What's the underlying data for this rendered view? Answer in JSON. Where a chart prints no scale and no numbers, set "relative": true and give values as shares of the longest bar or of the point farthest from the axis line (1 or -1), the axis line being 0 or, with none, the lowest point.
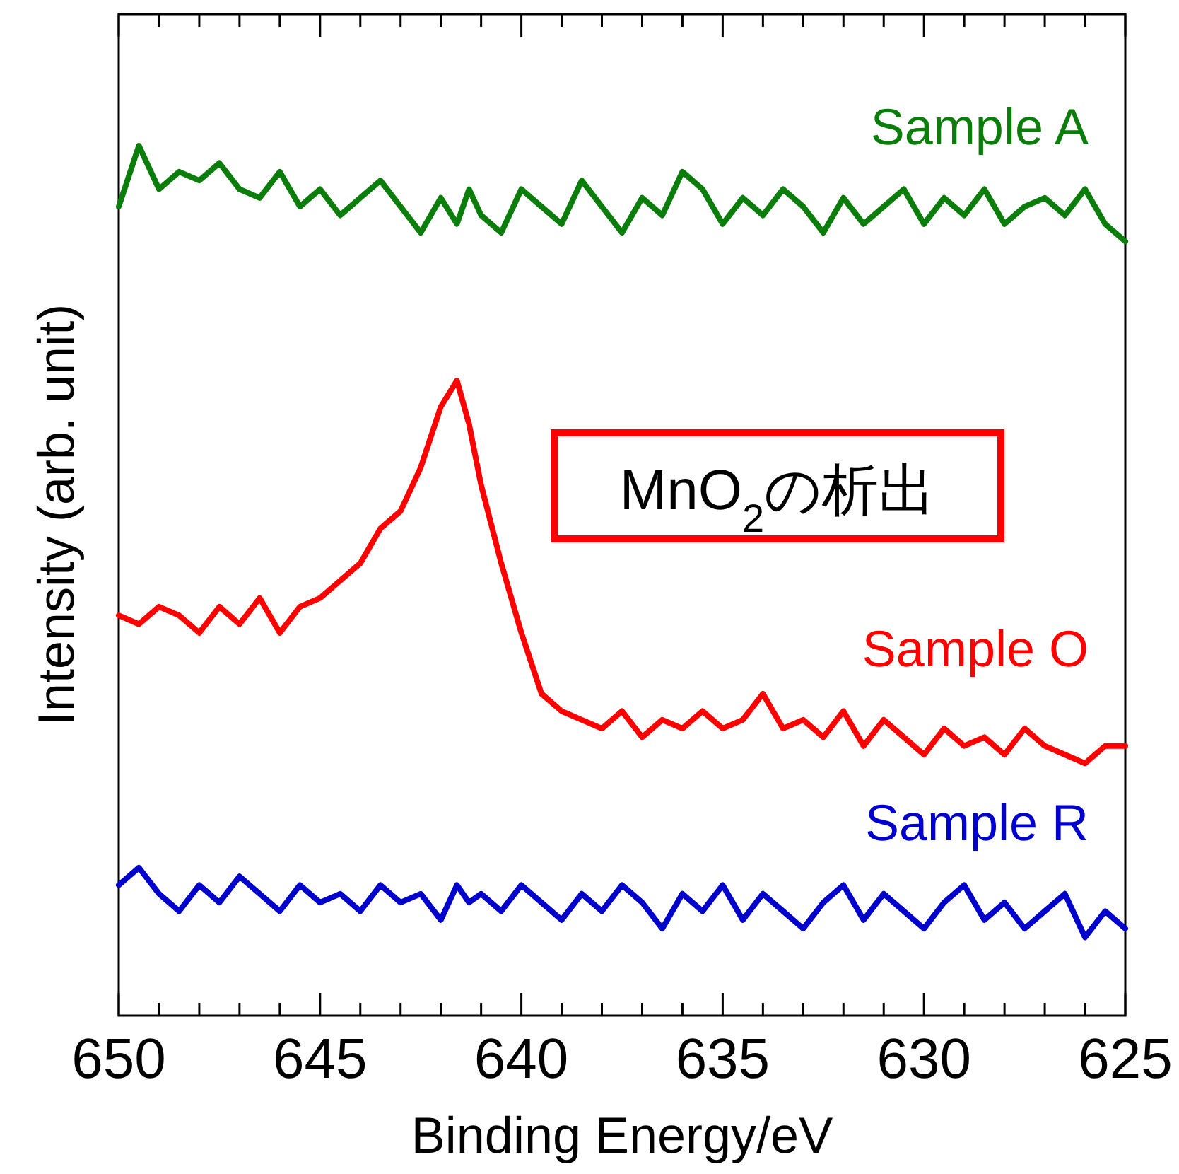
{
  "chart_data": {
    "type": "line",
    "relative": true,
    "xlabel": "Binding Energy/eV",
    "ylabel": "Intensity (arb. unit)",
    "xlim": [
      650,
      625
    ],
    "xticks": [
      650,
      {
        "value": 649,
        "label": null
      },
      {
        "value": 648,
        "label": null
      },
      {
        "value": 647,
        "label": null
      },
      {
        "value": 646,
        "label": null
      },
      645,
      {
        "value": 644,
        "label": null
      },
      {
        "value": 643,
        "label": null
      },
      {
        "value": 642,
        "label": null
      },
      {
        "value": 641,
        "label": null
      },
      640,
      {
        "value": 639,
        "label": null
      },
      {
        "value": 638,
        "label": null
      },
      {
        "value": 637,
        "label": null
      },
      {
        "value": 636,
        "label": null
      },
      635,
      {
        "value": 634,
        "label": null
      },
      {
        "value": 633,
        "label": null
      },
      {
        "value": 632,
        "label": null
      },
      {
        "value": 631,
        "label": null
      },
      630,
      {
        "value": 629,
        "label": null
      },
      {
        "value": 628,
        "label": null
      },
      {
        "value": 627,
        "label": null
      },
      {
        "value": 626,
        "label": null
      },
      625
    ],
    "legend": false,
    "grid": false,
    "marker": "none",
    "line_style": "solid",
    "annotations": [
      "MnO$_{2}$の析出"
    ],
    "x": [
      650,
      649.5,
      649,
      648.5,
      648,
      647.5,
      647,
      646.5,
      646,
      645.5,
      645,
      644.5,
      644,
      643.5,
      643,
      642.5,
      642,
      641.6,
      641.3,
      641,
      640.5,
      640,
      639.5,
      639,
      638.5,
      638,
      637.5,
      637,
      636.5,
      636,
      635.5,
      635,
      634.5,
      634,
      633.5,
      633,
      632.5,
      632,
      631.5,
      631,
      630.5,
      630,
      629.5,
      629,
      628.5,
      628,
      627.5,
      627,
      626.5,
      626,
      625.5,
      625
    ],
    "series": [
      {
        "name": "Sample A",
        "color": "#0a7d0a",
        "values": [
          0.93,
          1.0,
          0.95,
          0.97,
          0.96,
          0.98,
          0.95,
          0.94,
          0.97,
          0.93,
          0.95,
          0.92,
          0.94,
          0.96,
          0.93,
          0.9,
          0.94,
          0.91,
          0.95,
          0.92,
          0.9,
          0.95,
          0.93,
          0.91,
          0.96,
          0.93,
          0.9,
          0.94,
          0.92,
          0.97,
          0.95,
          0.91,
          0.94,
          0.92,
          0.95,
          0.93,
          0.9,
          0.94,
          0.91,
          0.93,
          0.95,
          0.91,
          0.94,
          0.92,
          0.95,
          0.91,
          0.93,
          0.94,
          0.92,
          0.95,
          0.91,
          0.89
        ]
      },
      {
        "name": "Sample O",
        "color": "#ff0000",
        "values": [
          0.46,
          0.45,
          0.47,
          0.46,
          0.44,
          0.47,
          0.45,
          0.48,
          0.44,
          0.47,
          0.48,
          0.5,
          0.52,
          0.56,
          0.58,
          0.63,
          0.7,
          0.73,
          0.68,
          0.61,
          0.52,
          0.44,
          0.37,
          0.35,
          0.34,
          0.33,
          0.35,
          0.32,
          0.34,
          0.33,
          0.35,
          0.33,
          0.34,
          0.37,
          0.33,
          0.34,
          0.32,
          0.35,
          0.31,
          0.34,
          0.32,
          0.3,
          0.33,
          0.31,
          0.32,
          0.3,
          0.33,
          0.31,
          0.3,
          0.29,
          0.31,
          0.31
        ]
      },
      {
        "name": "Sample R",
        "color": "#0000cc",
        "values": [
          0.15,
          0.17,
          0.14,
          0.12,
          0.15,
          0.13,
          0.16,
          0.14,
          0.12,
          0.15,
          0.13,
          0.14,
          0.12,
          0.15,
          0.13,
          0.14,
          0.11,
          0.15,
          0.13,
          0.14,
          0.12,
          0.15,
          0.13,
          0.11,
          0.14,
          0.12,
          0.15,
          0.13,
          0.1,
          0.14,
          0.12,
          0.15,
          0.11,
          0.14,
          0.12,
          0.1,
          0.13,
          0.15,
          0.11,
          0.14,
          0.12,
          0.1,
          0.13,
          0.15,
          0.11,
          0.13,
          0.1,
          0.12,
          0.14,
          0.09,
          0.12,
          0.1
        ]
      }
    ]
  }
}
